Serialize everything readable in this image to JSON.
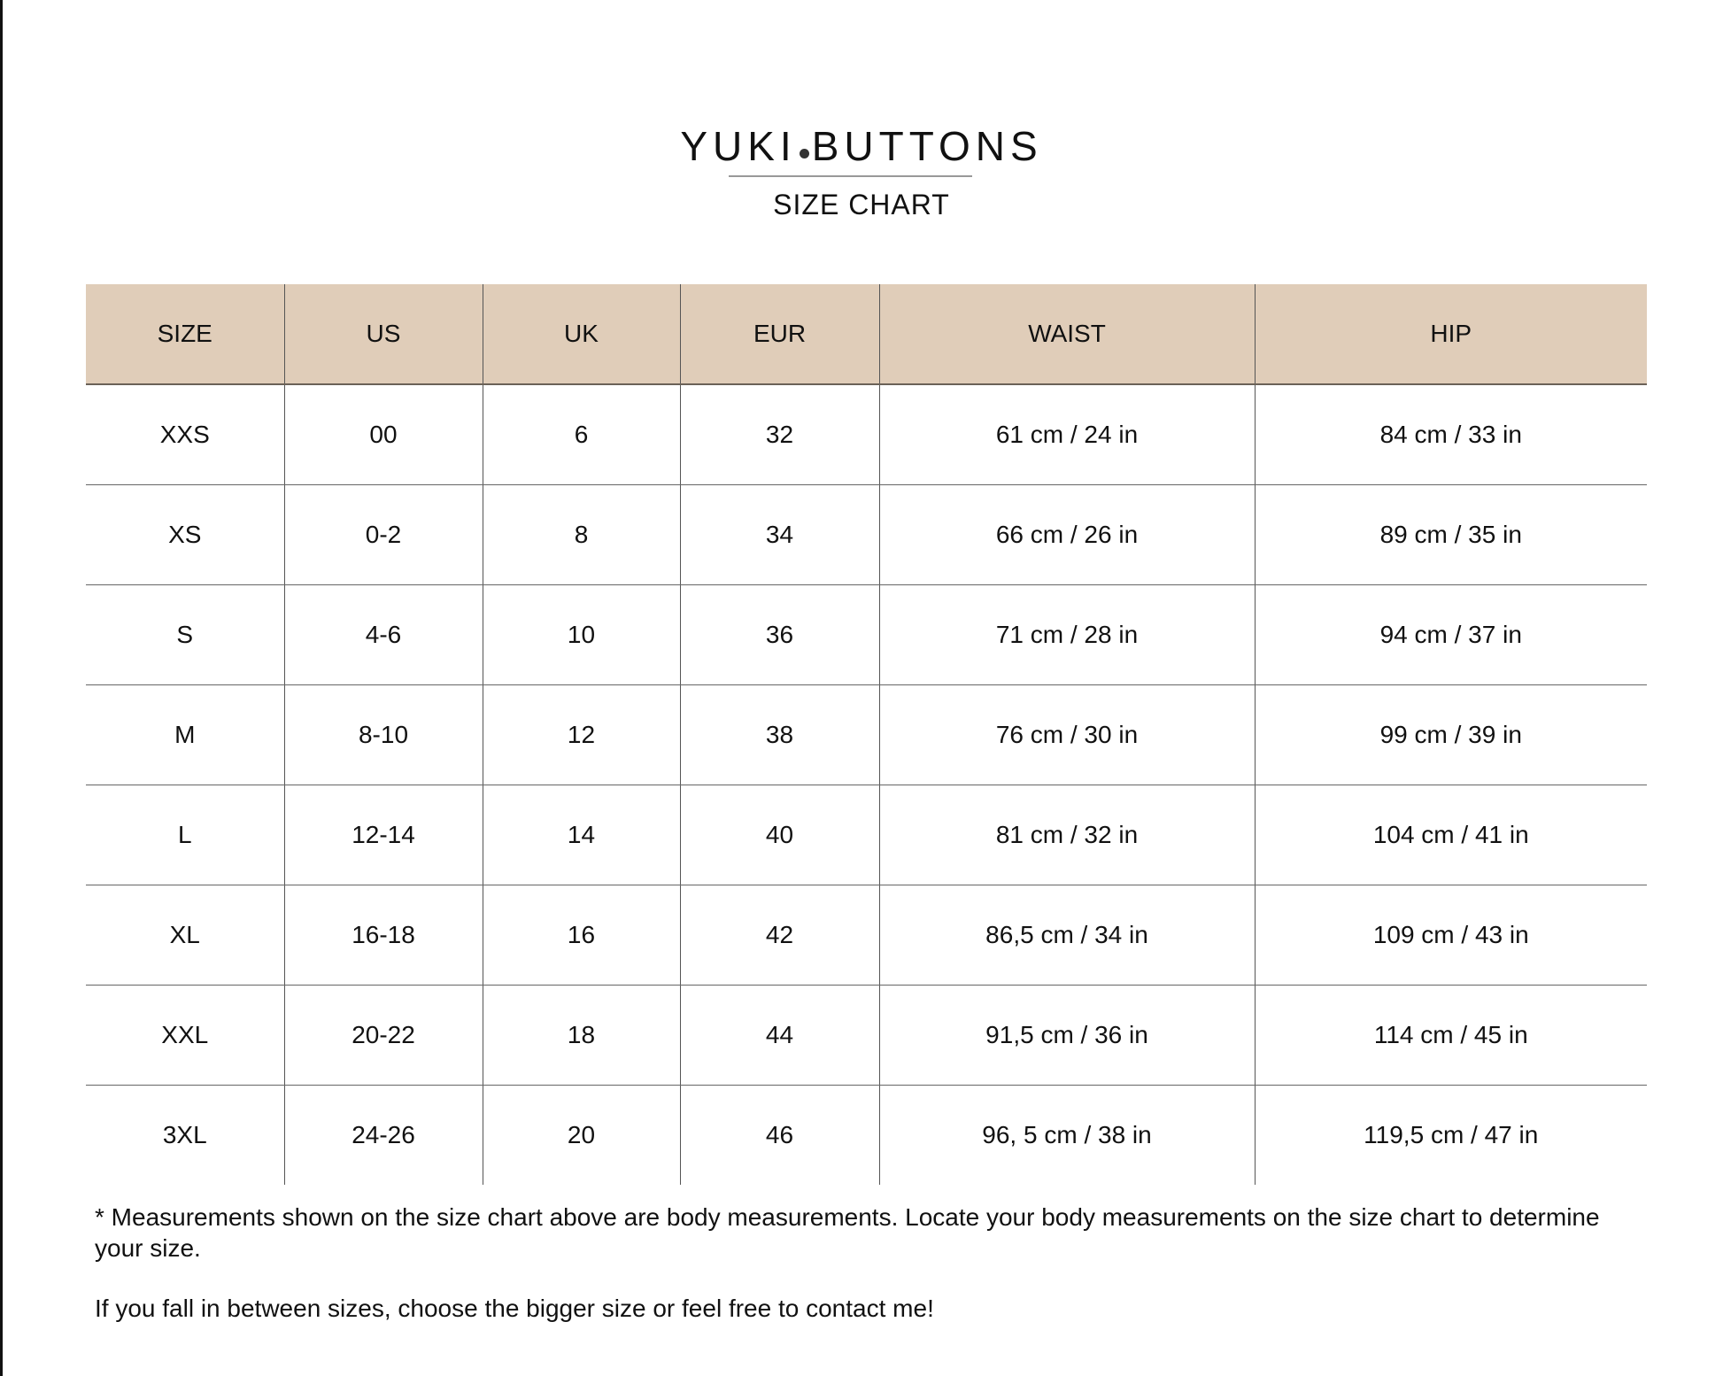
{
  "brand": {
    "name_left": "YUKI",
    "name_right": "BUTTONS",
    "subtitle": "SIZE CHART"
  },
  "colors": {
    "header_bg": "#e0cdb9"
  },
  "table": {
    "headers": [
      "SIZE",
      "US",
      "UK",
      "EUR",
      "WAIST",
      "HIP"
    ],
    "rows": [
      [
        "XXS",
        "00",
        "6",
        "32",
        "61 cm / 24 in",
        "84 cm / 33 in"
      ],
      [
        "XS",
        "0-2",
        "8",
        "34",
        "66 cm / 26 in",
        "89 cm / 35 in"
      ],
      [
        "S",
        "4-6",
        "10",
        "36",
        "71 cm / 28 in",
        "94 cm / 37 in"
      ],
      [
        "M",
        "8-10",
        "12",
        "38",
        "76 cm / 30 in",
        "99 cm / 39 in"
      ],
      [
        "L",
        "12-14",
        "14",
        "40",
        "81 cm / 32 in",
        "104 cm / 41 in"
      ],
      [
        "XL",
        "16-18",
        "16",
        "42",
        "86,5 cm / 34 in",
        "109 cm / 43 in"
      ],
      [
        "XXL",
        "20-22",
        "18",
        "44",
        "91,5 cm / 36 in",
        "114 cm / 45 in"
      ],
      [
        "3XL",
        "24-26",
        "20",
        "46",
        "96, 5 cm / 38 in",
        "119,5 cm / 47 in"
      ]
    ]
  },
  "notes": {
    "measurements": "* Measurements shown on the size chart above are body measurements. Locate your body measurements on the size chart to determine your size.",
    "between_sizes": "If you fall in between sizes, choose the bigger size or feel free to contact me!"
  }
}
